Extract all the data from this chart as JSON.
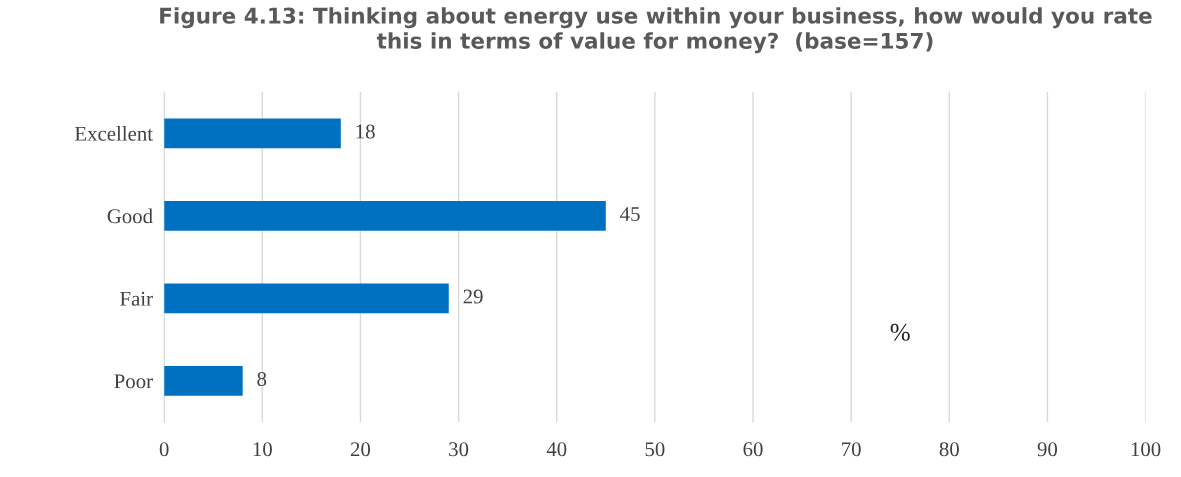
{
  "chart_data": {
    "type": "bar",
    "orientation": "horizontal",
    "title": "Figure 4.13: Thinking about energy use within your business, how would you rate\nthis in terms of value for money?  (base=157)",
    "categories": [
      "Excellent",
      "Good",
      "Fair",
      "Poor"
    ],
    "values": [
      18,
      45,
      29,
      8
    ],
    "color": "#0070c0",
    "data_labels": true,
    "xlabel": "%",
    "xlim": [
      0,
      100
    ],
    "xticks": [
      0,
      10,
      20,
      30,
      40,
      50,
      60,
      70,
      80,
      90,
      100
    ],
    "grid": "x"
  }
}
